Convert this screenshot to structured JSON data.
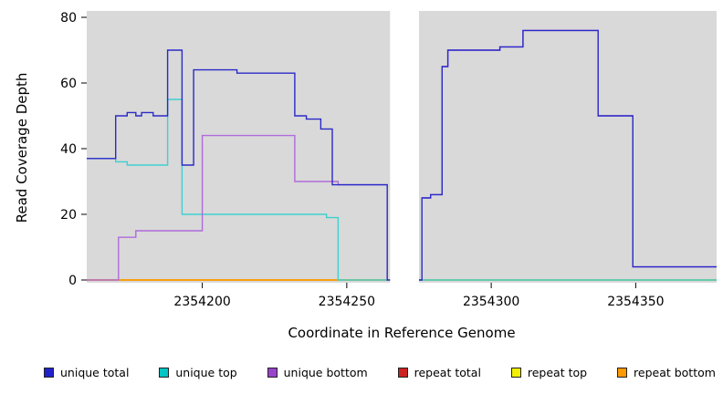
{
  "chart_data": {
    "type": "line",
    "step": true,
    "title": "",
    "x_label": "Coordinate in Reference Genome",
    "y_label": "Read Coverage Depth",
    "x_range": [
      2354160,
      2354378
    ],
    "y_range": [
      0,
      80
    ],
    "x_ticks": [
      2354200,
      2354250,
      2354300,
      2354350
    ],
    "y_ticks": [
      0,
      20,
      40,
      60,
      80
    ],
    "plot_bg": "#d9d9d9",
    "gap_band": [
      2354265,
      2354275
    ],
    "grid": false,
    "legend_position": "bottom",
    "series": [
      {
        "name": "repeat total",
        "color": "#cc2222",
        "segments": [
          [
            [
              2354160,
              0
            ],
            [
              2354378,
              0
            ]
          ]
        ]
      },
      {
        "name": "repeat top",
        "color": "#f0f000",
        "segments": [
          [
            [
              2354160,
              0
            ],
            [
              2354378,
              0
            ]
          ]
        ]
      },
      {
        "name": "repeat bottom",
        "color": "#ff9900",
        "segments": [
          [
            [
              2354160,
              0
            ],
            [
              2354264,
              0
            ]
          ]
        ]
      },
      {
        "name": "unique top",
        "color": "#3fd0d0",
        "segments": [
          [
            [
              2354160,
              37
            ],
            [
              2354170,
              36
            ],
            [
              2354174,
              35
            ],
            [
              2354188,
              55
            ],
            [
              2354193,
              20
            ],
            [
              2354243,
              19
            ],
            [
              2354247,
              0
            ],
            [
              2354264,
              0
            ]
          ],
          [
            [
              2354275,
              0
            ],
            [
              2354378,
              0
            ]
          ]
        ]
      },
      {
        "name": "unique bottom",
        "color": "#af6bdb",
        "segments": [
          [
            [
              2354160,
              0
            ],
            [
              2354171,
              13
            ],
            [
              2354177,
              15
            ],
            [
              2354200,
              44
            ],
            [
              2354232,
              30
            ],
            [
              2354247,
              29
            ],
            [
              2354264,
              29
            ]
          ],
          [
            [
              2354276,
              25
            ],
            [
              2354279,
              26
            ],
            [
              2354283,
              65
            ],
            [
              2354285,
              70
            ],
            [
              2354303,
              71
            ],
            [
              2354311,
              76
            ],
            [
              2354337,
              50
            ],
            [
              2354349,
              4
            ],
            [
              2354378,
              4
            ]
          ]
        ]
      },
      {
        "name": "unique total",
        "color": "#2a2ac8",
        "segments": [
          [
            [
              2354160,
              37
            ],
            [
              2354170,
              50
            ],
            [
              2354174,
              51
            ],
            [
              2354177,
              50
            ],
            [
              2354179,
              51
            ],
            [
              2354183,
              50
            ],
            [
              2354188,
              70
            ],
            [
              2354193,
              35
            ],
            [
              2354197,
              64
            ],
            [
              2354212,
              63
            ],
            [
              2354232,
              50
            ],
            [
              2354236,
              49
            ],
            [
              2354241,
              46
            ],
            [
              2354245,
              29
            ],
            [
              2354264,
              0
            ],
            [
              2354276,
              25
            ],
            [
              2354279,
              26
            ],
            [
              2354283,
              65
            ],
            [
              2354285,
              70
            ],
            [
              2354303,
              71
            ],
            [
              2354311,
              76
            ],
            [
              2354337,
              50
            ],
            [
              2354349,
              4
            ],
            [
              2354378,
              4
            ]
          ]
        ]
      }
    ],
    "legend": [
      {
        "label": "unique total",
        "color": "#2222cc"
      },
      {
        "label": "unique top",
        "color": "#00c5c5"
      },
      {
        "label": "unique bottom",
        "color": "#9944cc"
      },
      {
        "label": "repeat total",
        "color": "#cc2222"
      },
      {
        "label": "repeat top",
        "color": "#f0f000"
      },
      {
        "label": "repeat bottom",
        "color": "#ff9900"
      }
    ]
  }
}
